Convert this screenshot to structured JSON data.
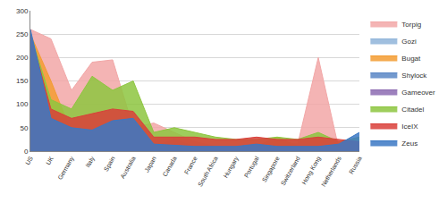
{
  "chart_data": {
    "type": "area",
    "categories": [
      "US",
      "UK",
      "Germany",
      "Italy",
      "Spain",
      "Australia",
      "Japan",
      "Canada",
      "France",
      "South Africa",
      "Hungary",
      "Portugal",
      "Singapore",
      "Switzerland",
      "Hong Kong",
      "Netherlands",
      "Russia"
    ],
    "series": [
      {
        "name": "Torpig",
        "color": "#f2a7a7",
        "values": [
          260,
          240,
          130,
          190,
          195,
          50,
          60,
          40,
          20,
          10,
          10,
          10,
          20,
          15,
          200,
          5,
          5
        ]
      },
      {
        "name": "Gozi",
        "color": "#8fb4d9",
        "values": [
          250,
          30,
          5,
          5,
          5,
          5,
          5,
          5,
          5,
          5,
          5,
          5,
          5,
          5,
          5,
          5,
          5
        ]
      },
      {
        "name": "Bugat",
        "color": "#f39c33",
        "values": [
          250,
          150,
          40,
          20,
          15,
          10,
          10,
          10,
          10,
          10,
          10,
          10,
          30,
          10,
          10,
          10,
          10
        ]
      },
      {
        "name": "Shylock",
        "color": "#5a87c6",
        "values": [
          250,
          50,
          5,
          5,
          5,
          5,
          5,
          5,
          5,
          5,
          5,
          5,
          5,
          5,
          5,
          5,
          5
        ]
      },
      {
        "name": "Gameover",
        "color": "#8c6bb1",
        "values": [
          250,
          80,
          40,
          30,
          40,
          30,
          10,
          25,
          10,
          10,
          10,
          10,
          10,
          10,
          10,
          10,
          10
        ]
      },
      {
        "name": "Citadel",
        "color": "#8dc63f",
        "values": [
          250,
          110,
          90,
          160,
          130,
          150,
          40,
          50,
          40,
          30,
          25,
          25,
          30,
          25,
          40,
          20,
          30
        ]
      },
      {
        "name": "IceIX",
        "color": "#d9403a",
        "values": [
          250,
          90,
          70,
          80,
          90,
          85,
          30,
          30,
          30,
          25,
          25,
          30,
          25,
          25,
          30,
          25,
          20
        ]
      },
      {
        "name": "Zeus",
        "color": "#3b78c4",
        "values": [
          260,
          70,
          50,
          45,
          65,
          70,
          15,
          12,
          10,
          10,
          10,
          15,
          10,
          10,
          10,
          15,
          40
        ]
      }
    ],
    "ylim": [
      0,
      300
    ],
    "yticks": [
      0,
      50,
      100,
      150,
      200,
      250,
      300
    ],
    "grid": true,
    "legend": "right"
  }
}
